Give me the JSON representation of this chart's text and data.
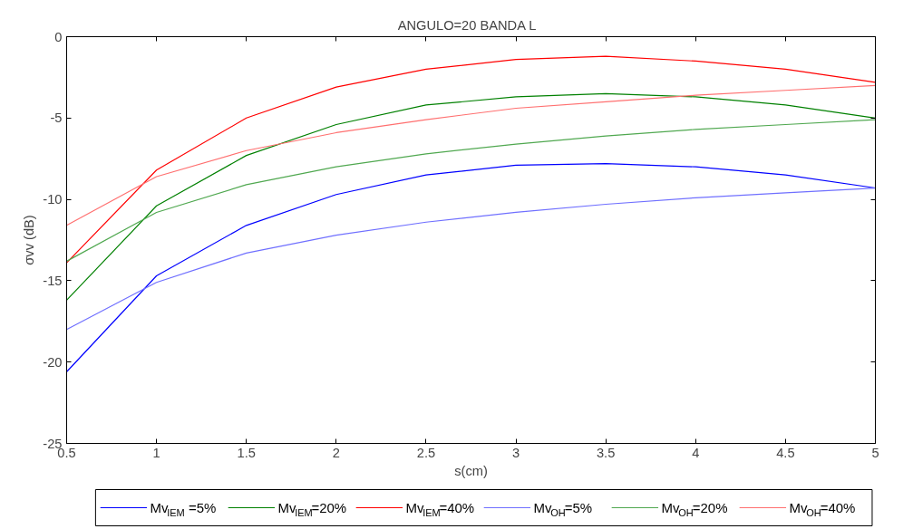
{
  "chart_data": {
    "type": "line",
    "title": "ANGULO=20   BANDA L",
    "xlabel": "s(cm)",
    "ylabel": "σvv (dB)",
    "x": [
      0.5,
      1,
      1.5,
      2,
      2.5,
      3,
      3.5,
      4,
      4.5,
      5
    ],
    "series": [
      {
        "name": "Mv$_{IEM}$ =5%",
        "color": "#0000ff",
        "values": [
          -20.6,
          -14.7,
          -11.6,
          -9.7,
          -8.5,
          -7.9,
          -7.8,
          -8.0,
          -8.5,
          -9.3
        ]
      },
      {
        "name": "Mv$_{IEM}$=20%",
        "color": "#008000",
        "values": [
          -16.2,
          -10.4,
          -7.3,
          -5.4,
          -4.2,
          -3.7,
          -3.5,
          -3.7,
          -4.2,
          -5.0
        ]
      },
      {
        "name": "Mv$_{IEM}$=40%",
        "color": "#ff0000",
        "values": [
          -13.9,
          -8.2,
          -5.0,
          -3.1,
          -2.0,
          -1.4,
          -1.2,
          -1.5,
          -2.0,
          -2.8
        ]
      },
      {
        "name": "Mv$_{OH}$=5%",
        "color": "#7070ff",
        "values": [
          -18.0,
          -15.1,
          -13.3,
          -12.2,
          -11.4,
          -10.8,
          -10.3,
          -9.9,
          -9.6,
          -9.3
        ]
      },
      {
        "name": "Mv$_{OH}$=20%",
        "color": "#50a850",
        "values": [
          -13.8,
          -10.8,
          -9.1,
          -8.0,
          -7.2,
          -6.6,
          -6.1,
          -5.7,
          -5.4,
          -5.1
        ]
      },
      {
        "name": "Mv$_{OH}$=40%",
        "color": "#ff7070",
        "values": [
          -11.6,
          -8.6,
          -7.0,
          -5.9,
          -5.1,
          -4.4,
          -4.0,
          -3.6,
          -3.3,
          -3.0
        ]
      }
    ],
    "xlim": [
      0.5,
      5
    ],
    "xticks": [
      0.5,
      1,
      1.5,
      2,
      2.5,
      3,
      3.5,
      4,
      4.5,
      5
    ],
    "ylim": [
      -25,
      0
    ],
    "yticks": [
      -25,
      -20,
      -15,
      -10,
      -5,
      0
    ],
    "grid": false,
    "legend": "bottom",
    "marker": "none"
  }
}
